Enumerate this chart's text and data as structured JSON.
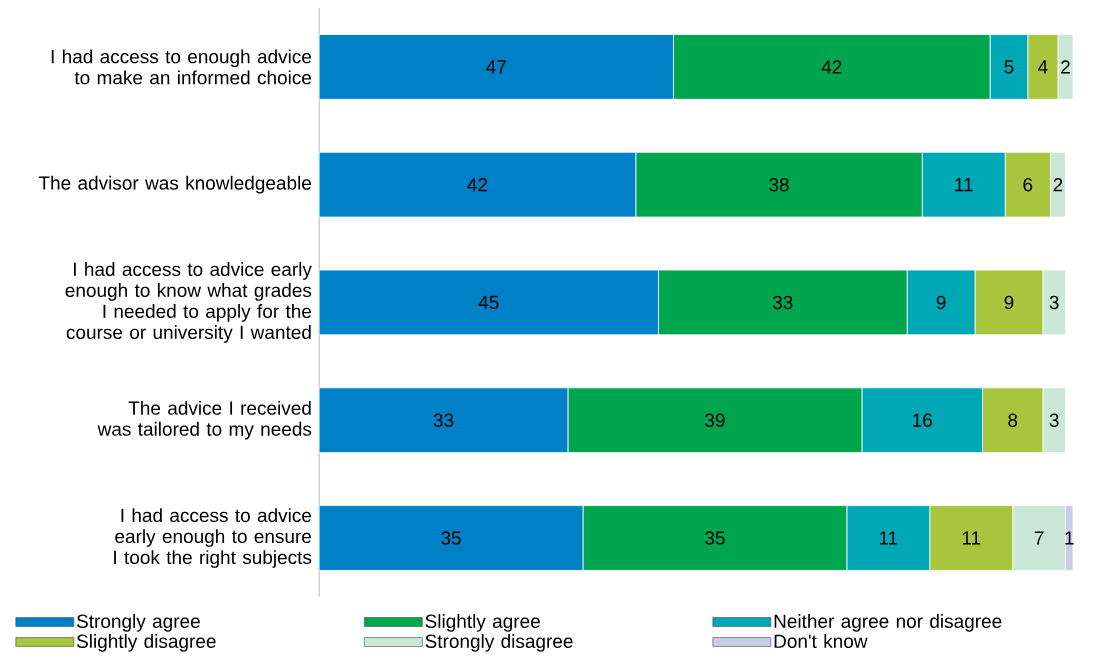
{
  "chart_data": {
    "type": "bar",
    "orientation": "horizontal",
    "stacked": true,
    "data_labels": true,
    "legend": "bottom",
    "categories": [
      "I had access to enough advice to make an informed choice",
      "The advisor was knowledgeable",
      "I had access to advice early enough to know what grades I needed to apply for the course or university I wanted",
      "The advice I received was tailored to my needs",
      "I had access to advice early enough to ensure I took the right subjects"
    ],
    "series": [
      {
        "name": "Strongly agree",
        "color": "#0080c6",
        "values": [
          47,
          42,
          45,
          33,
          35
        ]
      },
      {
        "name": "Slightly agree",
        "color": "#00a54f",
        "values": [
          42,
          38,
          33,
          39,
          35
        ]
      },
      {
        "name": "Neither agree nor disagree",
        "color": "#00a7b5",
        "values": [
          5,
          11,
          9,
          16,
          11
        ]
      },
      {
        "name": "Slightly disagree",
        "color": "#a8c53e",
        "values": [
          4,
          6,
          9,
          8,
          11
        ]
      },
      {
        "name": "Strongly disagree",
        "color": "#cbe7d7",
        "values": [
          2,
          2,
          3,
          3,
          7
        ]
      },
      {
        "name": "Don't know",
        "color": "#c9cde6",
        "values": [
          null,
          null,
          null,
          null,
          1
        ]
      }
    ]
  }
}
